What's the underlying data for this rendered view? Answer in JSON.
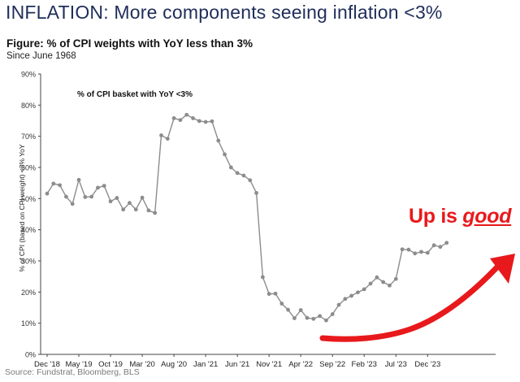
{
  "headline": "INFLATION: More components seeing inflation <3%",
  "figure_title": "Figure: % of CPI weights with YoY less than 3%",
  "figure_subtitle": "Since June 1968",
  "source": "Source: Fundstrat, Bloomberg, BLS",
  "annotation": {
    "text_before": "Up is ",
    "text_emph": "good",
    "color": "#e8191c"
  },
  "colors": {
    "headline": "#1f2d5a",
    "series": "#8c8c8c",
    "axis": "#444444",
    "arrow": "#e8191c"
  },
  "chart_data": {
    "type": "line",
    "series_label": "% of CPI basket with YoY <3%",
    "ylabel": "% of CPI (based on CPI weight) <3% YoY",
    "xlabel": "",
    "ylim": [
      0,
      90
    ],
    "yticks": [
      "0%",
      "10%",
      "20%",
      "30%",
      "40%",
      "50%",
      "60%",
      "70%",
      "80%",
      "90%"
    ],
    "yticks_values": [
      0,
      10,
      20,
      30,
      40,
      50,
      60,
      70,
      80,
      90
    ],
    "xtick_labels": [
      "Dec '18",
      "May '19",
      "Oct '19",
      "Mar '20",
      "Aug '20",
      "Jan '21",
      "Jun '21",
      "Nov '21",
      "Apr '22",
      "Sep '22",
      "Feb '23",
      "Jul '23",
      "Dec '23"
    ],
    "x_start": "Dec '18",
    "x_end": "Apr '24",
    "grid": false,
    "legend": "top-left",
    "series": [
      {
        "name": "% of CPI basket with YoY <3%",
        "values": [
          51.6,
          54.8,
          54.3,
          50.6,
          48.3,
          56.0,
          50.5,
          50.6,
          53.5,
          54.1,
          49.1,
          50.2,
          46.5,
          48.6,
          46.5,
          50.3,
          46.2,
          45.4,
          70.3,
          69.2,
          75.8,
          75.2,
          76.9,
          75.8,
          74.9,
          74.6,
          74.8,
          68.6,
          64.2,
          60.0,
          58.2,
          57.4,
          55.9,
          51.8,
          24.8,
          19.4,
          19.5,
          16.3,
          14.3,
          11.6,
          14.2,
          11.7,
          11.4,
          12.3,
          10.9,
          12.9,
          15.9,
          17.8,
          18.8,
          19.9,
          20.9,
          22.7,
          24.7,
          23.2,
          22.1,
          24.2,
          33.7,
          33.6,
          32.4,
          32.9,
          32.6,
          35.0,
          34.5,
          35.8
        ]
      }
    ]
  }
}
